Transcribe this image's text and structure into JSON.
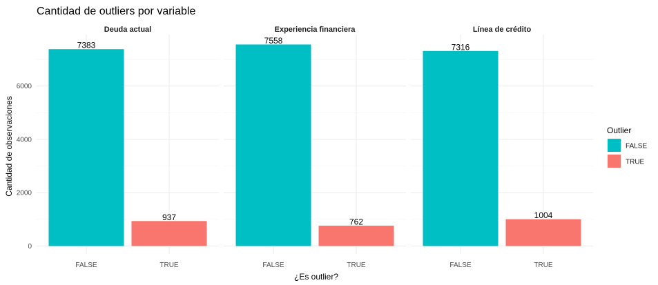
{
  "chart_data": {
    "type": "bar",
    "title": "Cantidad de outliers por variable",
    "xlabel": "¿Es outlier?",
    "ylabel": "Cantidad de observaciones",
    "ylim": [
      0,
      7900
    ],
    "yticks": [
      0,
      2000,
      4000,
      6000
    ],
    "grid": true,
    "categories": [
      "FALSE",
      "TRUE"
    ],
    "facets": [
      {
        "name": "Deuda actual",
        "values": [
          7383,
          937
        ]
      },
      {
        "name": "Experiencia financiera",
        "values": [
          7558,
          762
        ]
      },
      {
        "name": "Línea de crédito",
        "values": [
          7316,
          1004
        ]
      }
    ],
    "legend": {
      "title": "Outlier",
      "position": "right",
      "items": [
        {
          "label": "FALSE",
          "color": "#00BFC4"
        },
        {
          "label": "TRUE",
          "color": "#F8766D"
        }
      ]
    }
  }
}
